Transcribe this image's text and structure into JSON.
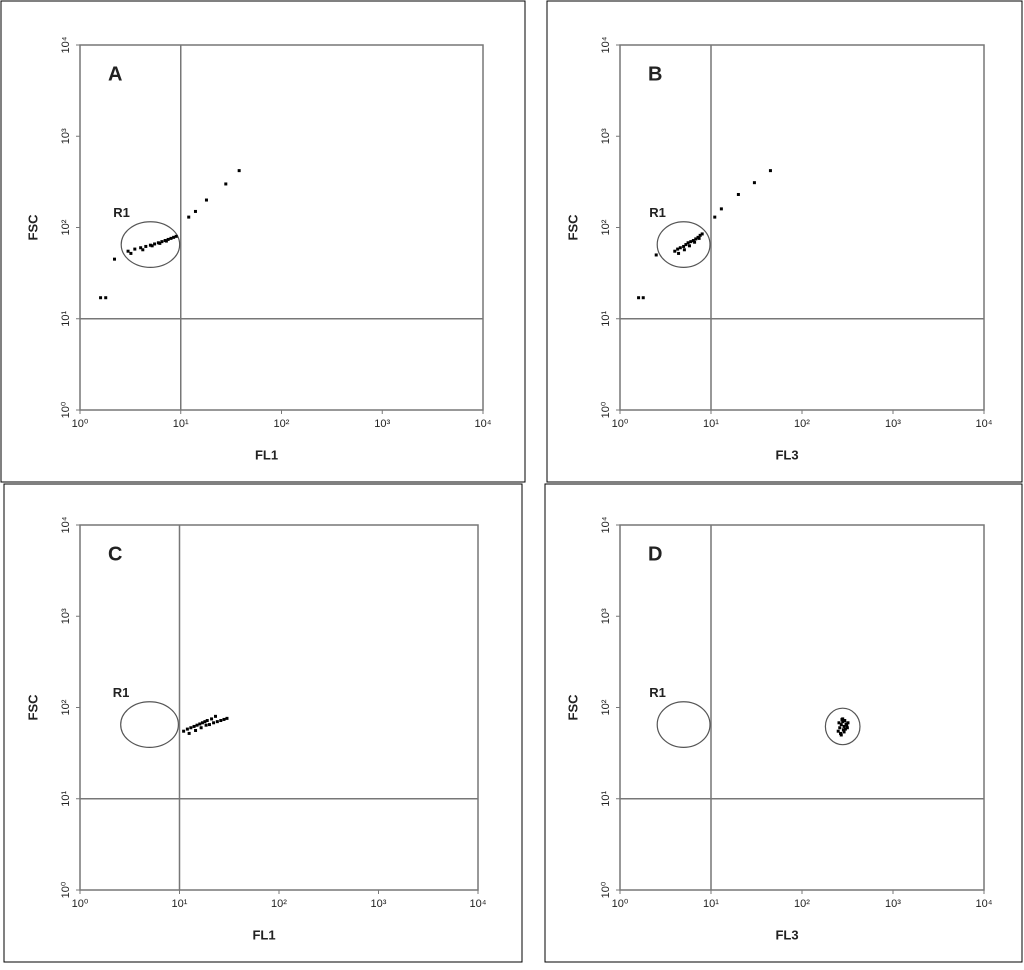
{
  "chart_data": [
    {
      "type": "scatter",
      "title": "A",
      "xlabel": "FL1",
      "ylabel": "FSC",
      "xscale": "log",
      "yscale": "log",
      "xlim": [
        1,
        10000
      ],
      "ylim": [
        1,
        10000
      ],
      "xticks": [
        {
          "value": 1,
          "label": "10⁰"
        },
        {
          "value": 10,
          "label": "10¹"
        },
        {
          "value": 100,
          "label": "10²"
        },
        {
          "value": 1000,
          "label": "10³"
        },
        {
          "value": 10000,
          "label": "10⁴"
        }
      ],
      "yticks": [
        {
          "value": 1,
          "label": "10⁰"
        },
        {
          "value": 10,
          "label": "10¹"
        },
        {
          "value": 100,
          "label": "10²"
        },
        {
          "value": 1000,
          "label": "10³"
        },
        {
          "value": 10000,
          "label": "10⁴"
        }
      ],
      "vlines": [
        10
      ],
      "hlines": [
        10
      ],
      "gates": [
        {
          "label": "R1",
          "x": 5,
          "y": 65
        }
      ],
      "series": [
        {
          "color": "#000000",
          "x": [
            3,
            3.5,
            4,
            4.5,
            5,
            5.5,
            6,
            6.5,
            7,
            7.5,
            8,
            3.2,
            4.2,
            5.2,
            6.2,
            7.2,
            8.5,
            9,
            1.6,
            1.8,
            2.2,
            12,
            14,
            18,
            28,
            38
          ],
          "y": [
            55,
            58,
            60,
            62,
            64,
            66,
            68,
            70,
            72,
            74,
            76,
            52,
            57,
            63,
            67,
            71,
            78,
            80,
            17,
            17,
            45,
            130,
            150,
            200,
            300,
            420
          ]
        }
      ]
    },
    {
      "type": "scatter",
      "title": "B",
      "xlabel": "FL3",
      "ylabel": "FSC",
      "xscale": "log",
      "yscale": "log",
      "xlim": [
        1,
        10000
      ],
      "ylim": [
        1,
        10000
      ],
      "xticks": [
        {
          "value": 1,
          "label": "10⁰"
        },
        {
          "value": 10,
          "label": "10¹"
        },
        {
          "value": 100,
          "label": "10²"
        },
        {
          "value": 1000,
          "label": "10³"
        },
        {
          "value": 10000,
          "label": "10⁴"
        }
      ],
      "yticks": [
        {
          "value": 1,
          "label": "10⁰"
        },
        {
          "value": 10,
          "label": "10¹"
        },
        {
          "value": 100,
          "label": "10²"
        },
        {
          "value": 1000,
          "label": "10³"
        },
        {
          "value": 10000,
          "label": "10⁴"
        }
      ],
      "vlines": [
        10
      ],
      "hlines": [
        10
      ],
      "gates": [
        {
          "label": "R1",
          "x": 5,
          "y": 65
        }
      ],
      "series": [
        {
          "color": "#000000",
          "x": [
            4,
            4.3,
            4.6,
            5,
            5.3,
            5.6,
            6,
            6.4,
            6.8,
            7.2,
            7.6,
            4.4,
            5.1,
            5.8,
            6.6,
            7.4,
            8,
            1.6,
            1.8,
            2.5,
            11,
            13,
            20,
            30,
            45
          ],
          "y": [
            55,
            58,
            60,
            62,
            65,
            68,
            70,
            72,
            75,
            78,
            82,
            52,
            57,
            63,
            69,
            76,
            85,
            17,
            17,
            50,
            130,
            160,
            230,
            310,
            420
          ]
        }
      ]
    },
    {
      "type": "scatter",
      "title": "C",
      "xlabel": "FL1",
      "ylabel": "FSC",
      "xscale": "log",
      "yscale": "log",
      "xlim": [
        1,
        10000
      ],
      "ylim": [
        1,
        10000
      ],
      "xticks": [
        {
          "value": 1,
          "label": "10⁰"
        },
        {
          "value": 10,
          "label": "10¹"
        },
        {
          "value": 100,
          "label": "10²"
        },
        {
          "value": 1000,
          "label": "10³"
        },
        {
          "value": 10000,
          "label": "10⁴"
        }
      ],
      "yticks": [
        {
          "value": 1,
          "label": "10⁰"
        },
        {
          "value": 10,
          "label": "10¹"
        },
        {
          "value": 100,
          "label": "10²"
        },
        {
          "value": 1000,
          "label": "10³"
        },
        {
          "value": 10000,
          "label": "10⁴"
        }
      ],
      "vlines": [
        10
      ],
      "hlines": [
        10
      ],
      "gates": [
        {
          "label": "R1",
          "x": 5,
          "y": 65
        }
      ],
      "series": [
        {
          "color": "#000000",
          "x": [
            11,
            12,
            13,
            14,
            15,
            16,
            17,
            18,
            19,
            20,
            22,
            24,
            26,
            28,
            30,
            12.5,
            14.5,
            16.5,
            18.5,
            21,
            23
          ],
          "y": [
            55,
            58,
            60,
            62,
            64,
            66,
            68,
            70,
            72,
            65,
            68,
            70,
            72,
            74,
            76,
            52,
            56,
            60,
            64,
            75,
            80
          ]
        }
      ]
    },
    {
      "type": "scatter",
      "title": "D",
      "xlabel": "FL3",
      "ylabel": "FSC",
      "xscale": "log",
      "yscale": "log",
      "xlim": [
        1,
        10000
      ],
      "ylim": [
        1,
        10000
      ],
      "xticks": [
        {
          "value": 1,
          "label": "10⁰"
        },
        {
          "value": 10,
          "label": "10¹"
        },
        {
          "value": 100,
          "label": "10²"
        },
        {
          "value": 1000,
          "label": "10³"
        },
        {
          "value": 10000,
          "label": "10⁴"
        }
      ],
      "yticks": [
        {
          "value": 1,
          "label": "10⁰"
        },
        {
          "value": 10,
          "label": "10¹"
        },
        {
          "value": 100,
          "label": "10²"
        },
        {
          "value": 1000,
          "label": "10³"
        },
        {
          "value": 10000,
          "label": "10⁴"
        }
      ],
      "vlines": [
        10
      ],
      "hlines": [
        10
      ],
      "gates": [
        {
          "label": "R1",
          "x": 5,
          "y": 65
        },
        {
          "x": 280,
          "y": 62
        }
      ],
      "series": [
        {
          "color": "#000000",
          "x": [
            250,
            260,
            270,
            280,
            290,
            300,
            310,
            320,
            255,
            265,
            275,
            285,
            295,
            305,
            315,
            270,
            290,
            280
          ],
          "y": [
            55,
            60,
            65,
            70,
            62,
            58,
            64,
            68,
            68,
            52,
            74,
            57,
            72,
            66,
            60,
            50,
            54,
            75
          ]
        }
      ]
    }
  ]
}
